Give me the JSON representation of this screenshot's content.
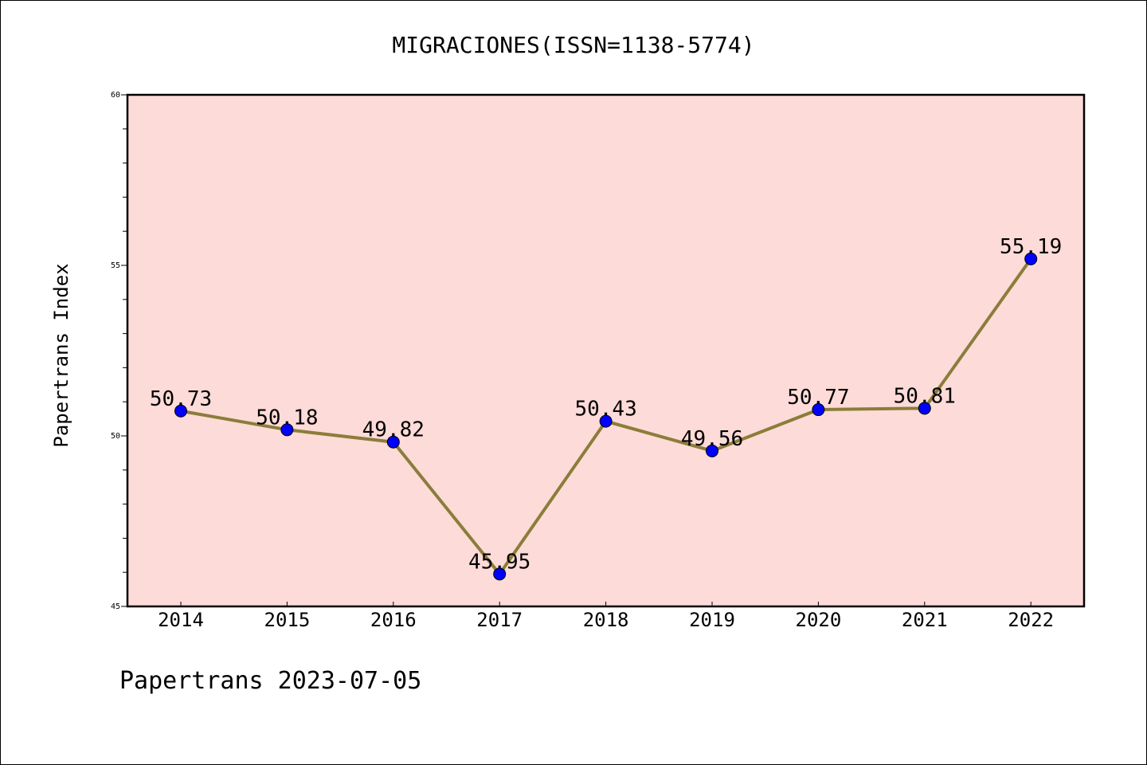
{
  "chart_data": {
    "type": "line",
    "title": "MIGRACIONES(ISSN=1138-5774)",
    "xlabel": "",
    "ylabel": "Papertrans Index",
    "categories": [
      "2014",
      "2015",
      "2016",
      "2017",
      "2018",
      "2019",
      "2020",
      "2021",
      "2022"
    ],
    "series": [
      {
        "values": [
          50.73,
          50.18,
          49.82,
          45.95,
          50.43,
          49.56,
          50.77,
          50.81,
          55.19
        ],
        "labels": [
          "50.73",
          "50.18",
          "49.82",
          "45.95",
          "50.43",
          "49.56",
          "50.77",
          "50.81",
          "55.19"
        ],
        "line_color": "#8b7d3a",
        "marker_color": "#0000ff"
      }
    ],
    "ylim": [
      45,
      60
    ],
    "yticks": [
      "45",
      "50",
      "55",
      "60"
    ],
    "grid": false,
    "plot_background": "#fddbd8",
    "footer": "Papertrans 2023-07-05"
  }
}
